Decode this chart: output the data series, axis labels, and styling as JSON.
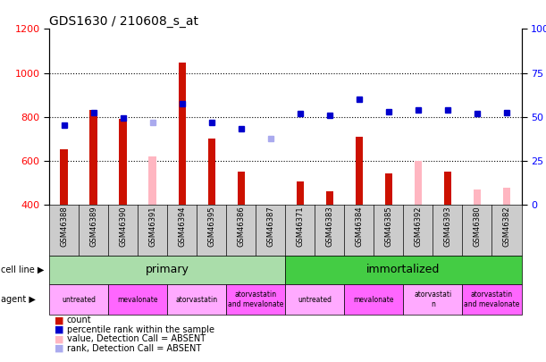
{
  "title": "GDS1630 / 210608_s_at",
  "samples": [
    "GSM46388",
    "GSM46389",
    "GSM46390",
    "GSM46391",
    "GSM46394",
    "GSM46395",
    "GSM46386",
    "GSM46387",
    "GSM46371",
    "GSM46383",
    "GSM46384",
    "GSM46385",
    "GSM46392",
    "GSM46393",
    "GSM46380",
    "GSM46382"
  ],
  "count_values": [
    650,
    830,
    790,
    null,
    1048,
    700,
    550,
    null,
    505,
    460,
    710,
    540,
    null,
    550,
    null,
    null
  ],
  "count_absent": [
    null,
    null,
    null,
    620,
    null,
    null,
    null,
    null,
    null,
    null,
    null,
    null,
    600,
    null,
    470,
    475
  ],
  "rank_values": [
    760,
    820,
    795,
    null,
    858,
    775,
    745,
    null,
    815,
    808,
    878,
    822,
    832,
    832,
    815,
    818
  ],
  "rank_absent": [
    null,
    null,
    null,
    773,
    null,
    null,
    null,
    700,
    null,
    null,
    null,
    null,
    null,
    null,
    null,
    null
  ],
  "cell_line_groups": [
    {
      "label": "primary",
      "start": 0,
      "end": 7,
      "color": "#aaddaa"
    },
    {
      "label": "immortalized",
      "start": 8,
      "end": 15,
      "color": "#44cc44"
    }
  ],
  "agent_groups": [
    {
      "label": "untreated",
      "start": 0,
      "end": 1,
      "color": "#ffaaff"
    },
    {
      "label": "mevalonate",
      "start": 2,
      "end": 3,
      "color": "#ff66ff"
    },
    {
      "label": "atorvastatin",
      "start": 4,
      "end": 5,
      "color": "#ffaaff"
    },
    {
      "label": "atorvastatin\nand mevalonate",
      "start": 6,
      "end": 7,
      "color": "#ff66ff"
    },
    {
      "label": "untreated",
      "start": 8,
      "end": 9,
      "color": "#ffaaff"
    },
    {
      "label": "mevalonate",
      "start": 10,
      "end": 11,
      "color": "#ff66ff"
    },
    {
      "label": "atorvastati\nn",
      "start": 12,
      "end": 13,
      "color": "#ffaaff"
    },
    {
      "label": "atorvastatin\nand mevalonate",
      "start": 14,
      "end": 15,
      "color": "#ff66ff"
    }
  ],
  "bar_color_present": "#cc1100",
  "bar_color_absent": "#ffb6c1",
  "dot_color_present": "#0000cc",
  "dot_color_absent": "#aaaaee",
  "ylim_left": [
    400,
    1200
  ],
  "ylim_right": [
    0,
    100
  ],
  "yticks_left": [
    400,
    600,
    800,
    1000,
    1200
  ],
  "yticks_right": [
    0,
    25,
    50,
    75,
    100
  ],
  "bar_width": 0.25
}
